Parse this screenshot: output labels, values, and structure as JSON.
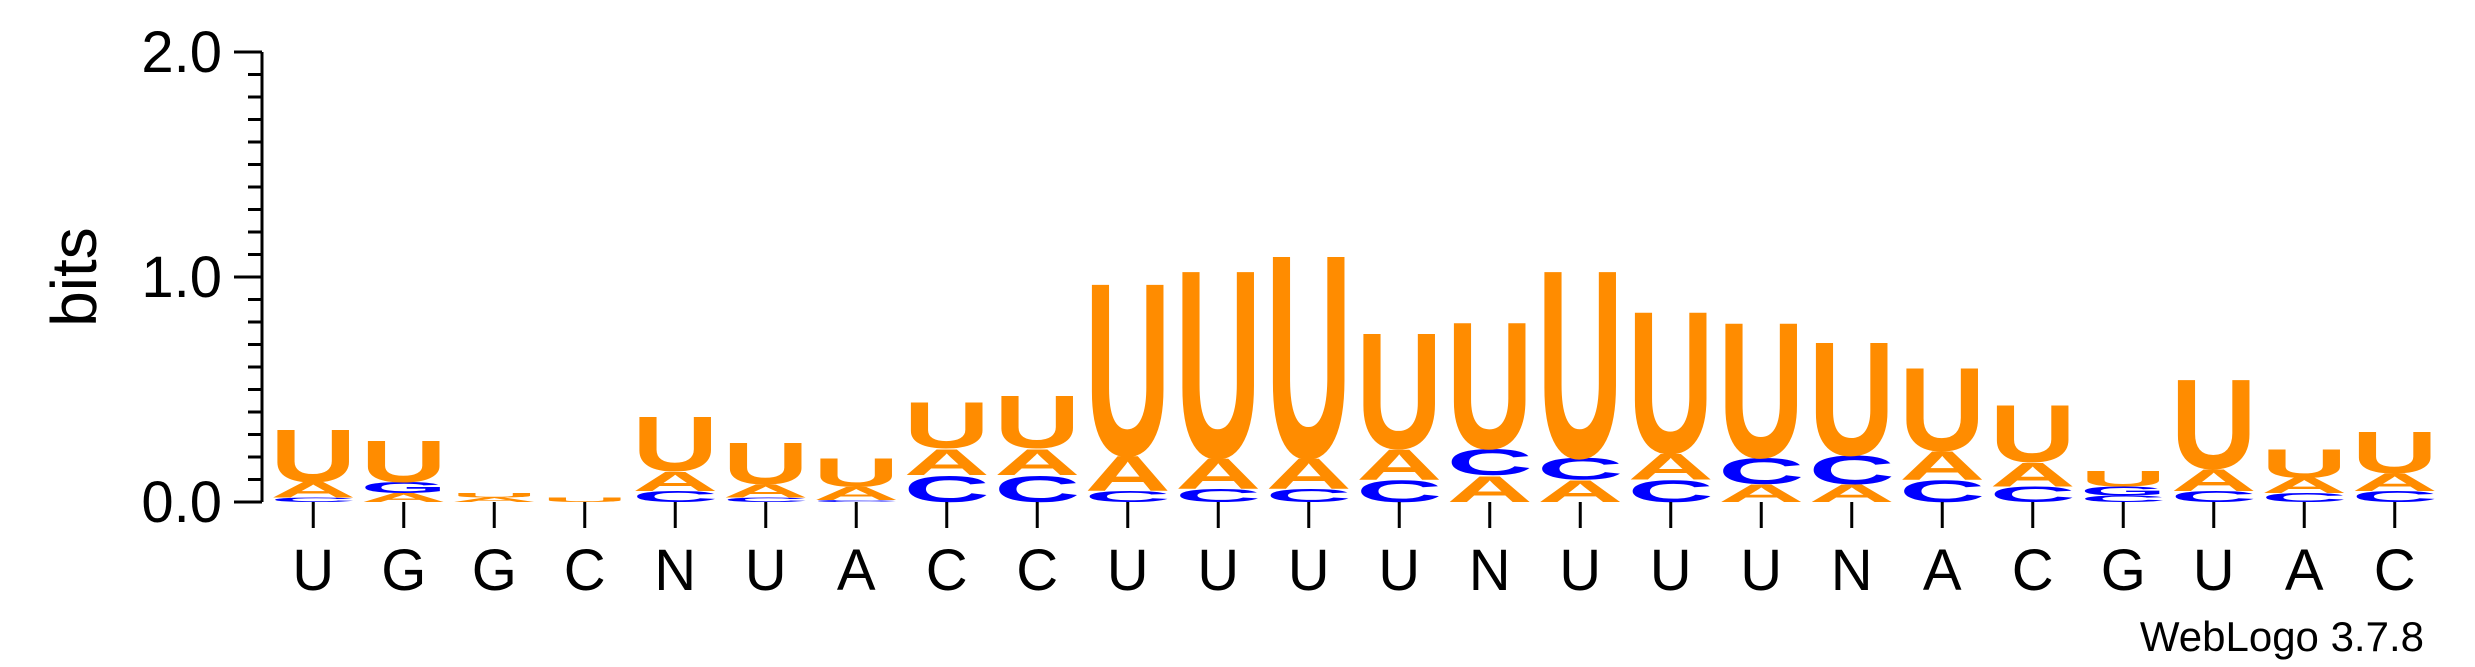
{
  "chart_data": {
    "type": "sequence-logo",
    "ylabel": "bits",
    "ylim": [
      0,
      2.0
    ],
    "yticks": [
      "0.0",
      "1.0",
      "2.0"
    ],
    "footer": "WebLogo 3.7.8",
    "colors": {
      "U": "#ff8c00",
      "A": "#ff8c00",
      "C": "#0000ff",
      "G": "#0000ff"
    },
    "positions": [
      {
        "label": "U",
        "stack": [
          [
            "C",
            0.02
          ],
          [
            "A",
            0.07
          ],
          [
            "U",
            0.24
          ]
        ]
      },
      {
        "label": "G",
        "stack": [
          [
            "A",
            0.04
          ],
          [
            "G",
            0.05
          ],
          [
            "U",
            0.19
          ]
        ]
      },
      {
        "label": "G",
        "stack": [
          [
            "A",
            0.02
          ],
          [
            "U",
            0.02
          ]
        ]
      },
      {
        "label": "C",
        "stack": [
          [
            "U",
            0.02
          ]
        ]
      },
      {
        "label": "N",
        "stack": [
          [
            "C",
            0.05
          ],
          [
            "A",
            0.09
          ],
          [
            "U",
            0.25
          ]
        ]
      },
      {
        "label": "U",
        "stack": [
          [
            "C",
            0.02
          ],
          [
            "A",
            0.06
          ],
          [
            "U",
            0.19
          ]
        ]
      },
      {
        "label": "A",
        "stack": [
          [
            "C",
            0.01
          ],
          [
            "A",
            0.06
          ],
          [
            "U",
            0.13
          ]
        ]
      },
      {
        "label": "C",
        "stack": [
          [
            "C",
            0.12
          ],
          [
            "A",
            0.12
          ],
          [
            "U",
            0.21
          ]
        ]
      },
      {
        "label": "C",
        "stack": [
          [
            "C",
            0.12
          ],
          [
            "A",
            0.12
          ],
          [
            "U",
            0.24
          ]
        ]
      },
      {
        "label": "U",
        "stack": [
          [
            "C",
            0.05
          ],
          [
            "A",
            0.16
          ],
          [
            "U",
            0.79
          ]
        ]
      },
      {
        "label": "U",
        "stack": [
          [
            "C",
            0.06
          ],
          [
            "A",
            0.14
          ],
          [
            "U",
            0.86
          ]
        ]
      },
      {
        "label": "U",
        "stack": [
          [
            "C",
            0.06
          ],
          [
            "A",
            0.14
          ],
          [
            "U",
            0.93
          ]
        ]
      },
      {
        "label": "U",
        "stack": [
          [
            "C",
            0.1
          ],
          [
            "A",
            0.14
          ],
          [
            "U",
            0.53
          ]
        ]
      },
      {
        "label": "N",
        "stack": [
          [
            "A",
            0.12
          ],
          [
            "C",
            0.12
          ],
          [
            "U",
            0.58
          ]
        ]
      },
      {
        "label": "U",
        "stack": [
          [
            "A",
            0.1
          ],
          [
            "C",
            0.1
          ],
          [
            "U",
            0.86
          ]
        ]
      },
      {
        "label": "U",
        "stack": [
          [
            "C",
            0.1
          ],
          [
            "A",
            0.12
          ],
          [
            "U",
            0.65
          ]
        ]
      },
      {
        "label": "U",
        "stack": [
          [
            "A",
            0.08
          ],
          [
            "C",
            0.12
          ],
          [
            "U",
            0.62
          ]
        ]
      },
      {
        "label": "N",
        "stack": [
          [
            "A",
            0.08
          ],
          [
            "C",
            0.13
          ],
          [
            "U",
            0.52
          ]
        ]
      },
      {
        "label": "A",
        "stack": [
          [
            "C",
            0.1
          ],
          [
            "A",
            0.13
          ],
          [
            "U",
            0.38
          ]
        ]
      },
      {
        "label": "C",
        "stack": [
          [
            "C",
            0.07
          ],
          [
            "A",
            0.11
          ],
          [
            "U",
            0.26
          ]
        ]
      },
      {
        "label": "G",
        "stack": [
          [
            "C",
            0.03
          ],
          [
            "G",
            0.04
          ],
          [
            "U",
            0.07
          ]
        ]
      },
      {
        "label": "U",
        "stack": [
          [
            "C",
            0.05
          ],
          [
            "A",
            0.1
          ],
          [
            "U",
            0.41
          ]
        ]
      },
      {
        "label": "A",
        "stack": [
          [
            "C",
            0.04
          ],
          [
            "A",
            0.07
          ],
          [
            "U",
            0.13
          ]
        ]
      },
      {
        "label": "C",
        "stack": [
          [
            "C",
            0.05
          ],
          [
            "A",
            0.08
          ],
          [
            "U",
            0.19
          ]
        ]
      }
    ]
  }
}
